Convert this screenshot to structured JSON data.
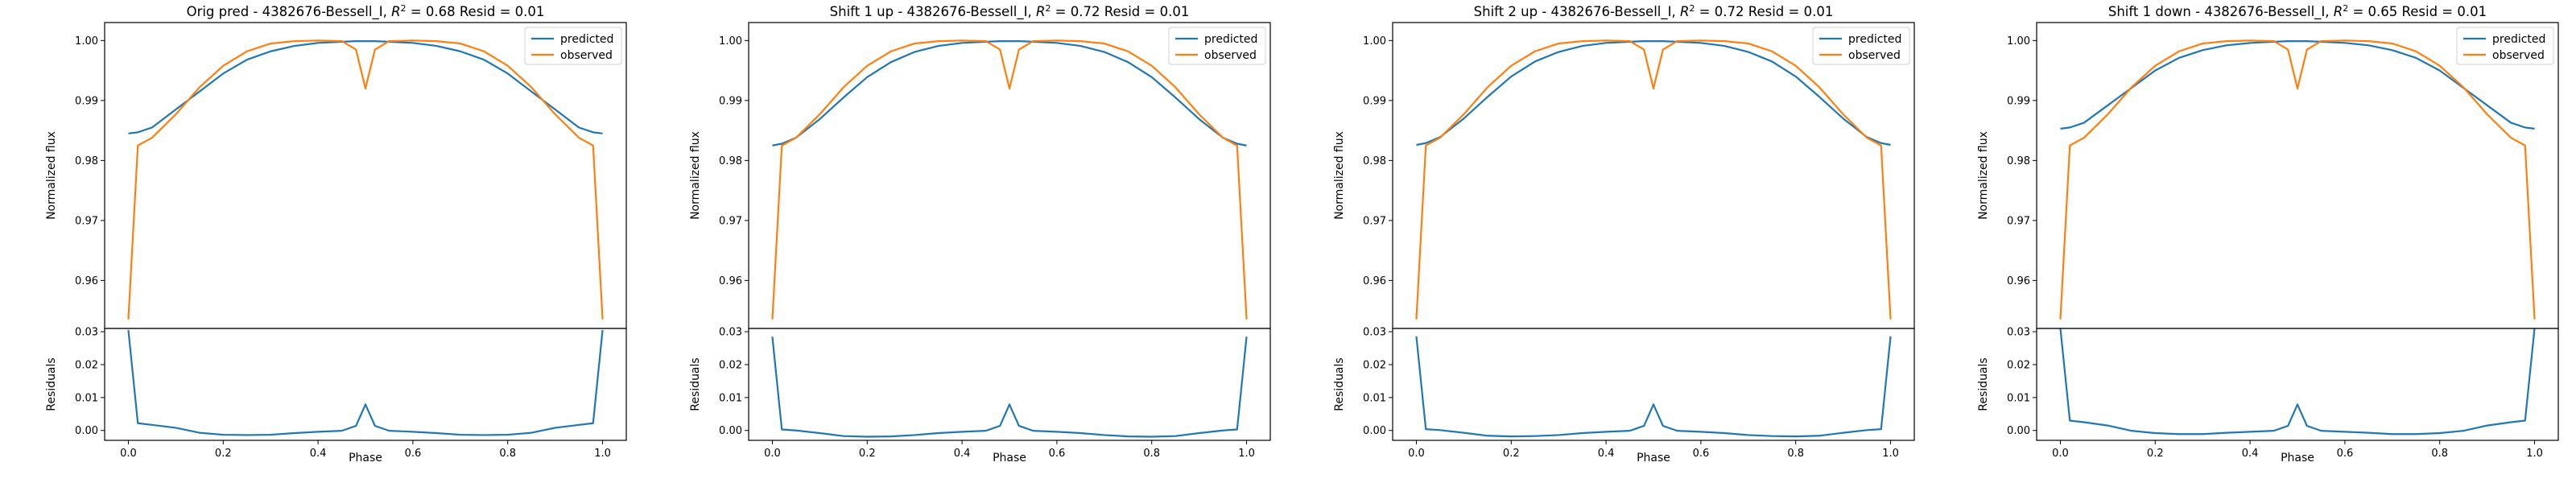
{
  "figure": {
    "background": "#ffffff",
    "series_colors": {
      "predicted": "#1f77b4",
      "observed": "#ff7f0e"
    }
  },
  "chart_data": [
    {
      "type": "line",
      "title": "Orig pred - 4382676-Bessell_I, R² = 0.68 Resid = 0.01",
      "title_prefix": "Orig pred - 4382676-Bessell_I, ",
      "r2_value": "0.68",
      "resid_value": "0.01",
      "xlabel": "Phase",
      "ylabel": "Normalized flux",
      "resid_ylabel": "Residuals",
      "xlim": [
        -0.05,
        1.05
      ],
      "ylim": [
        0.952,
        1.003
      ],
      "resid_ylim": [
        -0.003,
        0.031
      ],
      "x_ticks": [
        "0.0",
        "0.2",
        "0.4",
        "0.6",
        "0.8",
        "1.0"
      ],
      "y_ticks": [
        "0.96",
        "0.97",
        "0.98",
        "0.99",
        "1.00"
      ],
      "resid_y_ticks": [
        "0.00",
        "0.01",
        "0.02",
        "0.03"
      ],
      "legend": {
        "position": "top-right",
        "entries": [
          "predicted",
          "observed"
        ]
      },
      "grid": false,
      "x": [
        0.0,
        0.02,
        0.05,
        0.1,
        0.15,
        0.2,
        0.25,
        0.3,
        0.35,
        0.4,
        0.45,
        0.48,
        0.5,
        0.52,
        0.55,
        0.6,
        0.65,
        0.7,
        0.75,
        0.8,
        0.85,
        0.9,
        0.95,
        0.98,
        1.0
      ],
      "series": [
        {
          "name": "predicted",
          "values": [
            0.9845,
            0.9847,
            0.9855,
            0.9885,
            0.9915,
            0.9945,
            0.9968,
            0.9982,
            0.9991,
            0.9996,
            0.9998,
            0.9999,
            0.9999,
            0.9999,
            0.9998,
            0.9996,
            0.9991,
            0.9982,
            0.9968,
            0.9945,
            0.9915,
            0.9885,
            0.9855,
            0.9847,
            0.9845
          ]
        },
        {
          "name": "observed",
          "values": [
            0.9535,
            0.9825,
            0.9838,
            0.9877,
            0.9922,
            0.9958,
            0.9982,
            0.9995,
            0.9999,
            1.0,
            0.9999,
            0.9985,
            0.992,
            0.9985,
            0.9999,
            1.0,
            0.9999,
            0.9995,
            0.9982,
            0.9958,
            0.9922,
            0.9877,
            0.9838,
            0.9825,
            0.9535
          ]
        },
        {
          "name": "residuals",
          "values": [
            0.0305,
            0.0022,
            0.0017,
            0.0008,
            -0.0007,
            -0.0013,
            -0.0014,
            -0.0013,
            -0.0008,
            -0.0004,
            -0.0001,
            0.0014,
            0.0079,
            0.0014,
            -0.0001,
            -0.0004,
            -0.0008,
            -0.0013,
            -0.0014,
            -0.0013,
            -0.0007,
            0.0008,
            0.0017,
            0.0022,
            0.0305
          ]
        }
      ]
    },
    {
      "type": "line",
      "title": "Shift 1 up - 4382676-Bessell_I, R² = 0.72 Resid = 0.01",
      "title_prefix": "Shift 1 up - 4382676-Bessell_I, ",
      "r2_value": "0.72",
      "resid_value": "0.01",
      "xlabel": "Phase",
      "ylabel": "Normalized flux",
      "resid_ylabel": "Residuals",
      "xlim": [
        -0.05,
        1.05
      ],
      "ylim": [
        0.952,
        1.003
      ],
      "resid_ylim": [
        -0.003,
        0.031
      ],
      "x_ticks": [
        "0.0",
        "0.2",
        "0.4",
        "0.6",
        "0.8",
        "1.0"
      ],
      "y_ticks": [
        "0.96",
        "0.97",
        "0.98",
        "0.99",
        "1.00"
      ],
      "resid_y_ticks": [
        "0.00",
        "0.01",
        "0.02",
        "0.03"
      ],
      "legend": {
        "position": "top-right",
        "entries": [
          "predicted",
          "observed"
        ]
      },
      "grid": false,
      "x": [
        0.0,
        0.02,
        0.05,
        0.1,
        0.15,
        0.2,
        0.25,
        0.3,
        0.35,
        0.4,
        0.45,
        0.48,
        0.5,
        0.52,
        0.55,
        0.6,
        0.65,
        0.7,
        0.75,
        0.8,
        0.85,
        0.9,
        0.95,
        0.98,
        1.0
      ],
      "series": [
        {
          "name": "predicted",
          "values": [
            0.9825,
            0.9828,
            0.9838,
            0.9869,
            0.9905,
            0.9939,
            0.9964,
            0.9981,
            0.9991,
            0.9996,
            0.9998,
            0.9999,
            0.9999,
            0.9999,
            0.9998,
            0.9996,
            0.9991,
            0.9981,
            0.9964,
            0.9939,
            0.9905,
            0.9869,
            0.9838,
            0.9828,
            0.9825
          ]
        },
        {
          "name": "observed",
          "values": [
            0.9535,
            0.9825,
            0.9838,
            0.9877,
            0.9922,
            0.9958,
            0.9982,
            0.9995,
            0.9999,
            1.0,
            0.9999,
            0.9985,
            0.992,
            0.9985,
            0.9999,
            1.0,
            0.9999,
            0.9995,
            0.9982,
            0.9958,
            0.9922,
            0.9877,
            0.9838,
            0.9825,
            0.9535
          ]
        },
        {
          "name": "residuals",
          "values": [
            0.0285,
            0.0003,
            0.0,
            -0.0008,
            -0.0017,
            -0.0019,
            -0.0018,
            -0.0014,
            -0.0008,
            -0.0004,
            -0.0001,
            0.0014,
            0.0079,
            0.0014,
            -0.0001,
            -0.0004,
            -0.0008,
            -0.0014,
            -0.0018,
            -0.0019,
            -0.0017,
            -0.0008,
            0.0,
            0.0003,
            0.0285
          ]
        }
      ]
    },
    {
      "type": "line",
      "title": "Shift 2 up - 4382676-Bessell_I, R² = 0.72 Resid = 0.01",
      "title_prefix": "Shift 2 up - 4382676-Bessell_I, ",
      "r2_value": "0.72",
      "resid_value": "0.01",
      "xlabel": "Phase",
      "ylabel": "Normalized flux",
      "resid_ylabel": "Residuals",
      "xlim": [
        -0.05,
        1.05
      ],
      "ylim": [
        0.952,
        1.003
      ],
      "resid_ylim": [
        -0.003,
        0.031
      ],
      "x_ticks": [
        "0.0",
        "0.2",
        "0.4",
        "0.6",
        "0.8",
        "1.0"
      ],
      "y_ticks": [
        "0.96",
        "0.97",
        "0.98",
        "0.99",
        "1.00"
      ],
      "resid_y_ticks": [
        "0.00",
        "0.01",
        "0.02",
        "0.03"
      ],
      "legend": {
        "position": "top-right",
        "entries": [
          "predicted",
          "observed"
        ]
      },
      "grid": false,
      "x": [
        0.0,
        0.02,
        0.05,
        0.1,
        0.15,
        0.2,
        0.25,
        0.3,
        0.35,
        0.4,
        0.45,
        0.48,
        0.5,
        0.52,
        0.55,
        0.6,
        0.65,
        0.7,
        0.75,
        0.8,
        0.85,
        0.9,
        0.95,
        0.98,
        1.0
      ],
      "series": [
        {
          "name": "predicted",
          "values": [
            0.9826,
            0.9829,
            0.9839,
            0.987,
            0.9906,
            0.994,
            0.9965,
            0.9981,
            0.9991,
            0.9996,
            0.9998,
            0.9999,
            0.9999,
            0.9999,
            0.9998,
            0.9996,
            0.9991,
            0.9981,
            0.9965,
            0.994,
            0.9906,
            0.987,
            0.9839,
            0.9829,
            0.9826
          ]
        },
        {
          "name": "observed",
          "values": [
            0.9535,
            0.9825,
            0.9838,
            0.9877,
            0.9922,
            0.9958,
            0.9982,
            0.9995,
            0.9999,
            1.0,
            0.9999,
            0.9985,
            0.992,
            0.9985,
            0.9999,
            1.0,
            0.9999,
            0.9995,
            0.9982,
            0.9958,
            0.9922,
            0.9877,
            0.9838,
            0.9825,
            0.9535
          ]
        },
        {
          "name": "residuals",
          "values": [
            0.0286,
            0.0004,
            0.0001,
            -0.0007,
            -0.0016,
            -0.0018,
            -0.0017,
            -0.0014,
            -0.0008,
            -0.0004,
            -0.0001,
            0.0014,
            0.0079,
            0.0014,
            -0.0001,
            -0.0004,
            -0.0008,
            -0.0014,
            -0.0017,
            -0.0018,
            -0.0016,
            -0.0007,
            0.0001,
            0.0004,
            0.0286
          ]
        }
      ]
    },
    {
      "type": "line",
      "title": "Shift 1 down - 4382676-Bessell_I, R² = 0.65 Resid = 0.01",
      "title_prefix": "Shift 1 down - 4382676-Bessell_I, ",
      "r2_value": "0.65",
      "resid_value": "0.01",
      "xlabel": "Phase",
      "ylabel": "Normalized flux",
      "resid_ylabel": "Residuals",
      "xlim": [
        -0.05,
        1.05
      ],
      "ylim": [
        0.952,
        1.003
      ],
      "resid_ylim": [
        -0.003,
        0.031
      ],
      "x_ticks": [
        "0.0",
        "0.2",
        "0.4",
        "0.6",
        "0.8",
        "1.0"
      ],
      "y_ticks": [
        "0.96",
        "0.97",
        "0.98",
        "0.99",
        "1.00"
      ],
      "resid_y_ticks": [
        "0.00",
        "0.01",
        "0.02",
        "0.03"
      ],
      "legend": {
        "position": "top-right",
        "entries": [
          "predicted",
          "observed"
        ]
      },
      "grid": false,
      "x": [
        0.0,
        0.02,
        0.05,
        0.1,
        0.15,
        0.2,
        0.25,
        0.3,
        0.35,
        0.4,
        0.45,
        0.48,
        0.5,
        0.52,
        0.55,
        0.6,
        0.65,
        0.7,
        0.75,
        0.8,
        0.85,
        0.9,
        0.95,
        0.98,
        1.0
      ],
      "series": [
        {
          "name": "predicted",
          "values": [
            0.9853,
            0.9855,
            0.9863,
            0.9892,
            0.9921,
            0.995,
            0.9971,
            0.9984,
            0.9992,
            0.9996,
            0.9998,
            0.9999,
            0.9999,
            0.9999,
            0.9998,
            0.9996,
            0.9992,
            0.9984,
            0.9971,
            0.995,
            0.9921,
            0.9892,
            0.9863,
            0.9855,
            0.9853
          ]
        },
        {
          "name": "observed",
          "values": [
            0.9535,
            0.9825,
            0.9838,
            0.9877,
            0.9922,
            0.9958,
            0.9982,
            0.9995,
            0.9999,
            1.0,
            0.9999,
            0.9985,
            0.992,
            0.9985,
            0.9999,
            1.0,
            0.9999,
            0.9995,
            0.9982,
            0.9958,
            0.9922,
            0.9877,
            0.9838,
            0.9825,
            0.9535
          ]
        },
        {
          "name": "residuals",
          "values": [
            0.0311,
            0.003,
            0.0025,
            0.0015,
            -0.0001,
            -0.0008,
            -0.0011,
            -0.0011,
            -0.0007,
            -0.0004,
            -0.0001,
            0.0014,
            0.0079,
            0.0014,
            -0.0001,
            -0.0004,
            -0.0007,
            -0.0011,
            -0.0011,
            -0.0008,
            -0.0001,
            0.0015,
            0.0025,
            0.003,
            0.0311
          ]
        }
      ]
    }
  ]
}
